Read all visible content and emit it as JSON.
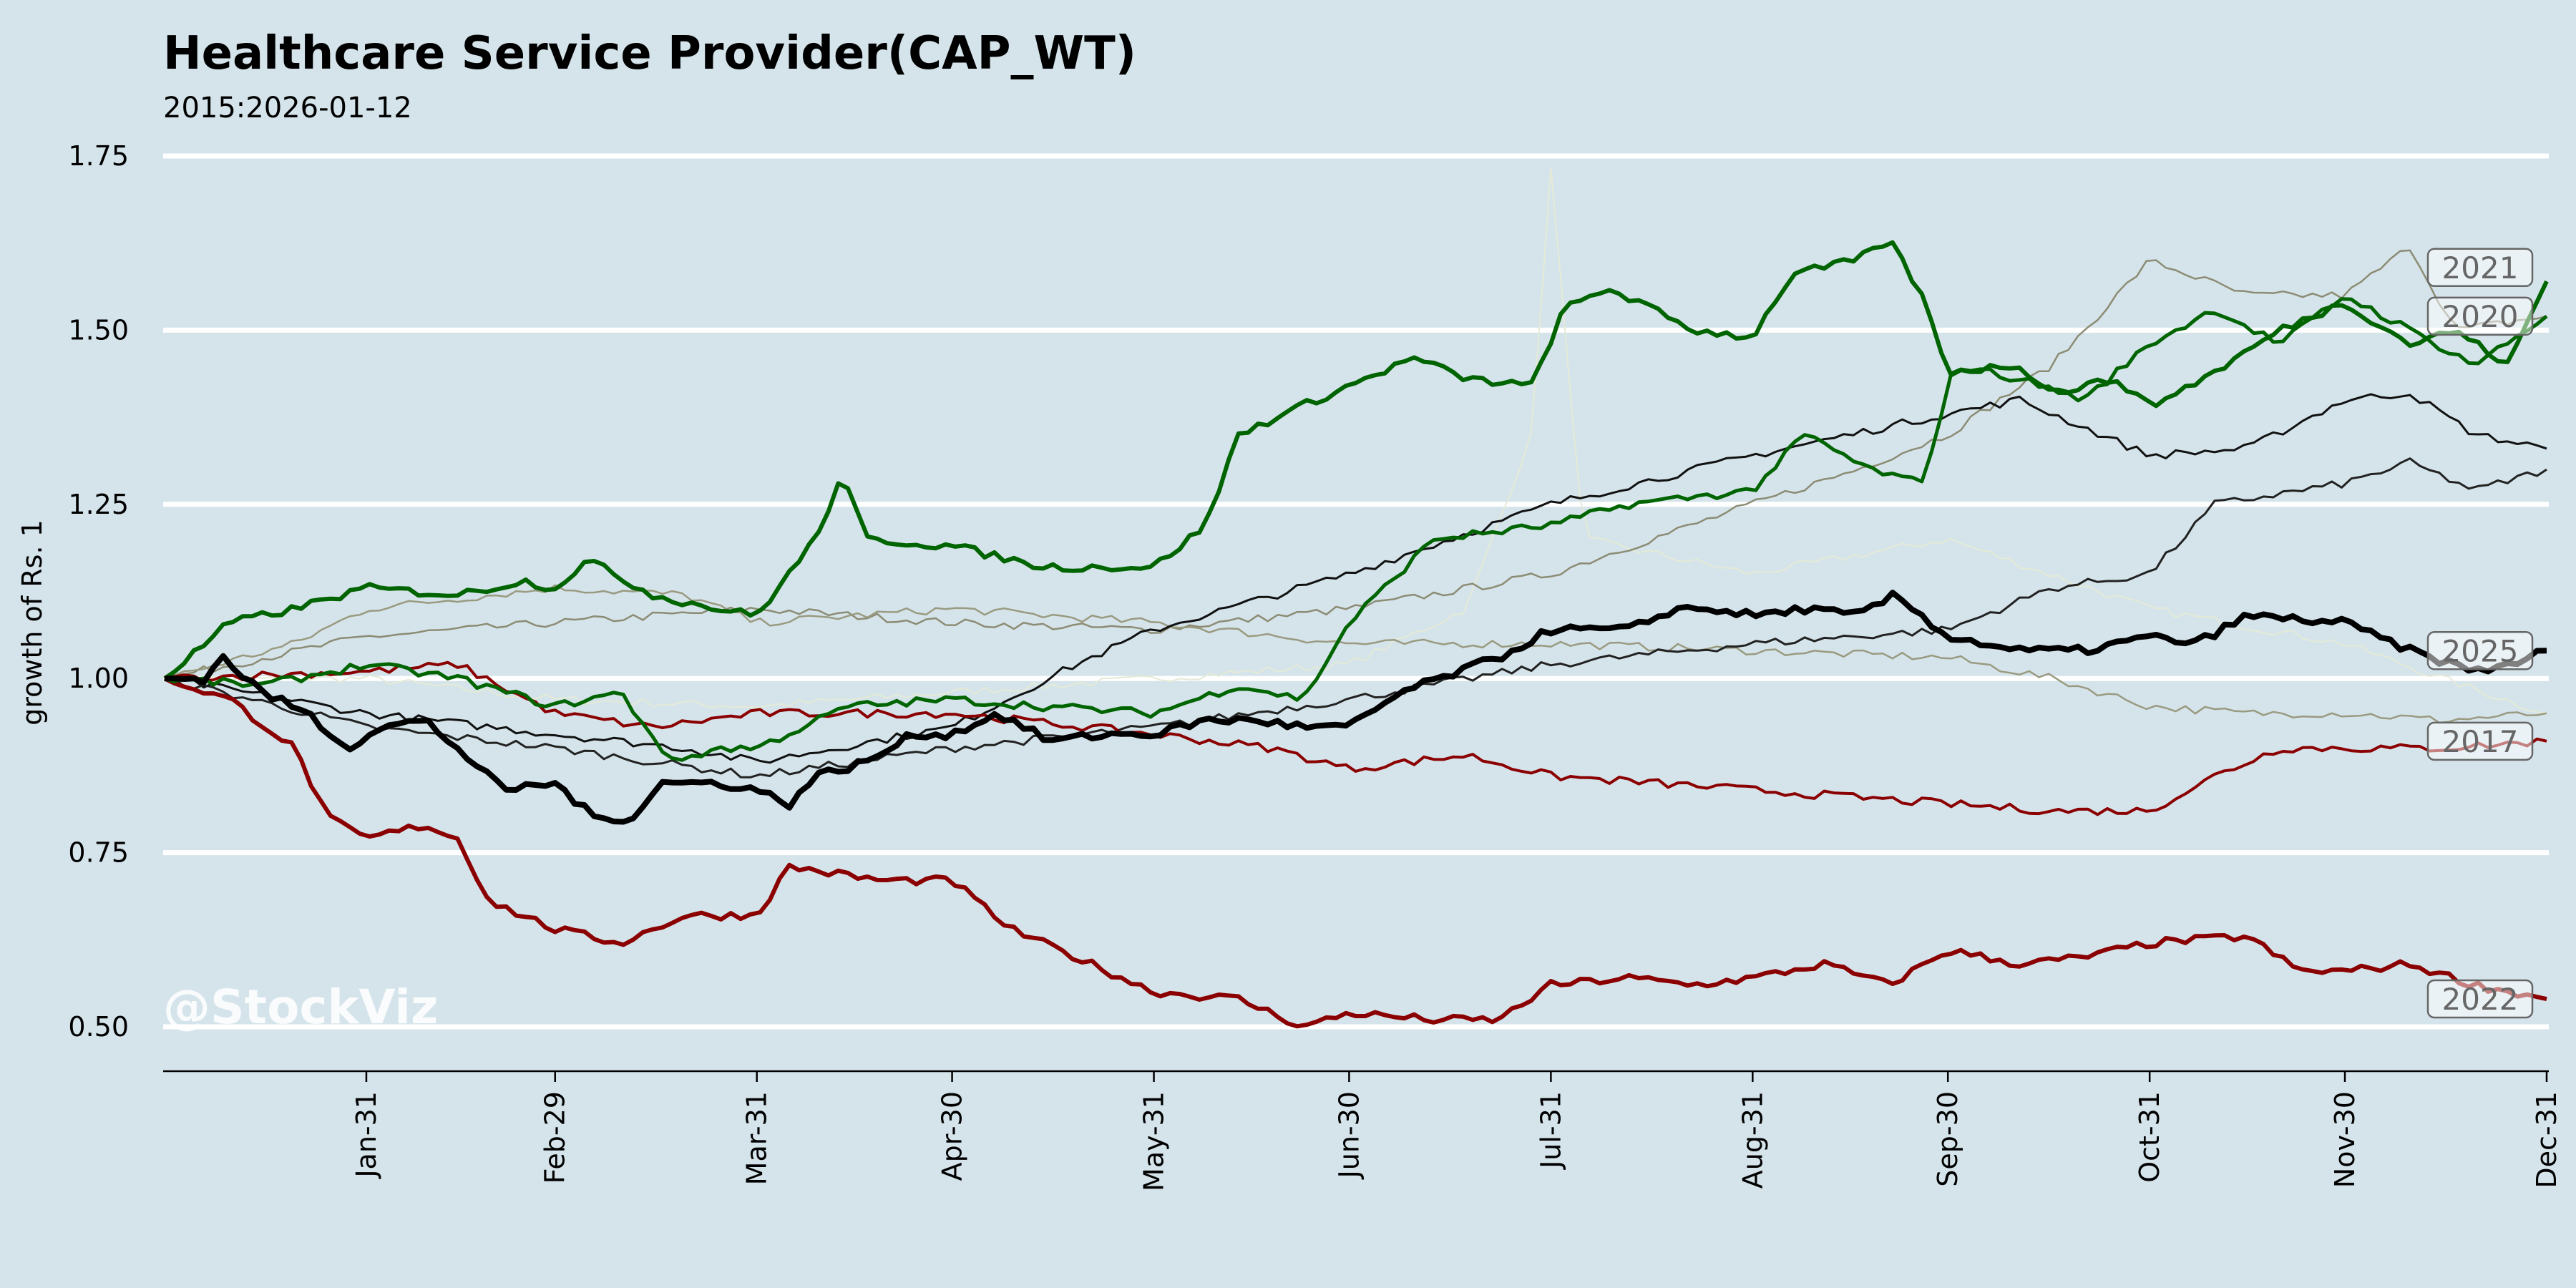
{
  "chart_data": {
    "type": "line",
    "title": "Healthcare Service Provider(CAP_WT)",
    "subtitle": "2015:2026-01-12",
    "xlabel": "",
    "ylabel": "growth of Rs. 1",
    "ylim": [
      0.45,
      1.78
    ],
    "yticks": [
      0.5,
      0.75,
      1.0,
      1.25,
      1.5,
      1.75
    ],
    "ytick_labels": [
      "0.50",
      "0.75",
      "1.00",
      "1.25",
      "1.50",
      "1.75"
    ],
    "xticks_day": [
      31,
      60,
      91,
      121,
      152,
      182,
      213,
      244,
      274,
      305,
      335,
      366
    ],
    "xtick_labels": [
      "Jan-31",
      "Feb-29",
      "Mar-31",
      "Apr-30",
      "May-31",
      "Jun-30",
      "Jul-31",
      "Aug-31",
      "Sep-30",
      "Oct-31",
      "Nov-30",
      "Dec-31"
    ],
    "grid": "horizontal",
    "watermark": "@StockViz",
    "colors": {
      "background": "#d5e4eb",
      "green": "#006400",
      "red": "#8b0000",
      "black": "#000000",
      "gray": "#8a8a72",
      "faint": "#e6ecd8"
    },
    "series": [
      {
        "name": "faint",
        "label": "",
        "color": "#e4ead6",
        "width": 2,
        "points": [
          [
            0,
            1.0
          ],
          [
            31,
            1.0
          ],
          [
            60,
            0.97
          ],
          [
            91,
            0.96
          ],
          [
            121,
            0.98
          ],
          [
            152,
            1.0
          ],
          [
            182,
            1.02
          ],
          [
            200,
            1.1
          ],
          [
            210,
            1.35
          ],
          [
            213,
            1.73
          ],
          [
            218,
            1.2
          ],
          [
            244,
            1.15
          ],
          [
            274,
            1.2
          ],
          [
            305,
            1.1
          ],
          [
            335,
            1.05
          ],
          [
            350,
            1.0
          ],
          [
            366,
            0.95
          ]
        ]
      },
      {
        "name": "gray-a",
        "label": "",
        "color": "#8c8c74",
        "width": 2.5,
        "points": [
          [
            0,
            1.0
          ],
          [
            31,
            1.06
          ],
          [
            60,
            1.08
          ],
          [
            91,
            1.1
          ],
          [
            121,
            1.08
          ],
          [
            152,
            1.07
          ],
          [
            182,
            1.1
          ],
          [
            213,
            1.15
          ],
          [
            244,
            1.25
          ],
          [
            260,
            1.3
          ],
          [
            274,
            1.35
          ],
          [
            290,
            1.45
          ],
          [
            305,
            1.6
          ],
          [
            320,
            1.55
          ],
          [
            335,
            1.55
          ],
          [
            345,
            1.62
          ],
          [
            352,
            1.5
          ],
          [
            366,
            1.52
          ]
        ]
      },
      {
        "name": "gray-b",
        "label": "",
        "color": "#9a9a80",
        "width": 2.5,
        "points": [
          [
            0,
            1.0
          ],
          [
            20,
            1.05
          ],
          [
            31,
            1.1
          ],
          [
            60,
            1.13
          ],
          [
            80,
            1.12
          ],
          [
            91,
            1.08
          ],
          [
            121,
            1.1
          ],
          [
            152,
            1.08
          ],
          [
            182,
            1.05
          ],
          [
            213,
            1.05
          ],
          [
            244,
            1.04
          ],
          [
            274,
            1.03
          ],
          [
            290,
            1.0
          ],
          [
            305,
            0.96
          ],
          [
            320,
            0.95
          ],
          [
            335,
            0.95
          ],
          [
            350,
            0.94
          ],
          [
            366,
            0.95
          ]
        ]
      },
      {
        "name": "black-a",
        "label": "",
        "color": "#111111",
        "width": 3,
        "points": [
          [
            0,
            1.0
          ],
          [
            31,
            0.95
          ],
          [
            60,
            0.92
          ],
          [
            80,
            0.9
          ],
          [
            91,
            0.88
          ],
          [
            121,
            0.93
          ],
          [
            140,
            1.02
          ],
          [
            152,
            1.07
          ],
          [
            182,
            1.15
          ],
          [
            213,
            1.25
          ],
          [
            244,
            1.32
          ],
          [
            274,
            1.38
          ],
          [
            285,
            1.4
          ],
          [
            305,
            1.32
          ],
          [
            320,
            1.33
          ],
          [
            335,
            1.4
          ],
          [
            345,
            1.41
          ],
          [
            355,
            1.35
          ],
          [
            366,
            1.33
          ]
        ]
      },
      {
        "name": "black-b",
        "label": "",
        "color": "#222222",
        "width": 3,
        "points": [
          [
            0,
            1.0
          ],
          [
            31,
            0.93
          ],
          [
            60,
            0.9
          ],
          [
            91,
            0.86
          ],
          [
            121,
            0.9
          ],
          [
            152,
            0.93
          ],
          [
            182,
            0.97
          ],
          [
            213,
            1.02
          ],
          [
            244,
            1.05
          ],
          [
            274,
            1.07
          ],
          [
            290,
            1.13
          ],
          [
            305,
            1.15
          ],
          [
            315,
            1.25
          ],
          [
            335,
            1.28
          ],
          [
            345,
            1.31
          ],
          [
            355,
            1.27
          ],
          [
            366,
            1.3
          ]
        ]
      },
      {
        "name": "2017",
        "label": "2017",
        "color": "#8b0000",
        "width": 4,
        "points": [
          [
            0,
            1.0
          ],
          [
            31,
            1.01
          ],
          [
            45,
            1.02
          ],
          [
            60,
            0.95
          ],
          [
            75,
            0.93
          ],
          [
            91,
            0.95
          ],
          [
            121,
            0.95
          ],
          [
            152,
            0.92
          ],
          [
            170,
            0.9
          ],
          [
            182,
            0.87
          ],
          [
            200,
            0.89
          ],
          [
            213,
            0.86
          ],
          [
            244,
            0.84
          ],
          [
            274,
            0.82
          ],
          [
            290,
            0.81
          ],
          [
            305,
            0.81
          ],
          [
            315,
            0.86
          ],
          [
            325,
            0.9
          ],
          [
            335,
            0.9
          ],
          [
            350,
            0.9
          ],
          [
            366,
            0.91
          ]
        ]
      },
      {
        "name": "2022",
        "label": "2022",
        "color": "#8b0000",
        "width": 6,
        "points": [
          [
            0,
            1.0
          ],
          [
            10,
            0.97
          ],
          [
            20,
            0.9
          ],
          [
            25,
            0.8
          ],
          [
            31,
            0.77
          ],
          [
            40,
            0.79
          ],
          [
            45,
            0.77
          ],
          [
            50,
            0.68
          ],
          [
            60,
            0.64
          ],
          [
            70,
            0.62
          ],
          [
            80,
            0.66
          ],
          [
            91,
            0.66
          ],
          [
            96,
            0.73
          ],
          [
            110,
            0.71
          ],
          [
            121,
            0.71
          ],
          [
            130,
            0.64
          ],
          [
            140,
            0.6
          ],
          [
            152,
            0.55
          ],
          [
            165,
            0.54
          ],
          [
            175,
            0.5
          ],
          [
            182,
            0.52
          ],
          [
            195,
            0.51
          ],
          [
            205,
            0.51
          ],
          [
            213,
            0.56
          ],
          [
            225,
            0.57
          ],
          [
            235,
            0.56
          ],
          [
            244,
            0.57
          ],
          [
            255,
            0.59
          ],
          [
            265,
            0.56
          ],
          [
            274,
            0.61
          ],
          [
            285,
            0.59
          ],
          [
            295,
            0.6
          ],
          [
            305,
            0.62
          ],
          [
            320,
            0.63
          ],
          [
            328,
            0.58
          ],
          [
            335,
            0.58
          ],
          [
            345,
            0.59
          ],
          [
            355,
            0.56
          ],
          [
            366,
            0.54
          ]
        ]
      },
      {
        "name": "2020",
        "label": "2020",
        "color": "#006400",
        "width": 5,
        "points": [
          [
            0,
            1.0
          ],
          [
            15,
            0.99
          ],
          [
            31,
            1.02
          ],
          [
            45,
            1.0
          ],
          [
            60,
            0.96
          ],
          [
            70,
            0.98
          ],
          [
            78,
            0.88
          ],
          [
            85,
            0.9
          ],
          [
            91,
            0.9
          ],
          [
            105,
            0.96
          ],
          [
            121,
            0.97
          ],
          [
            135,
            0.96
          ],
          [
            152,
            0.95
          ],
          [
            165,
            0.99
          ],
          [
            175,
            0.97
          ],
          [
            182,
            1.08
          ],
          [
            195,
            1.2
          ],
          [
            213,
            1.22
          ],
          [
            225,
            1.25
          ],
          [
            244,
            1.27
          ],
          [
            252,
            1.35
          ],
          [
            262,
            1.3
          ],
          [
            270,
            1.28
          ],
          [
            275,
            1.45
          ],
          [
            285,
            1.43
          ],
          [
            295,
            1.4
          ],
          [
            305,
            1.48
          ],
          [
            315,
            1.53
          ],
          [
            325,
            1.48
          ],
          [
            335,
            1.55
          ],
          [
            345,
            1.5
          ],
          [
            355,
            1.45
          ],
          [
            366,
            1.52
          ]
        ]
      },
      {
        "name": "2021",
        "label": "2021",
        "color": "#006400",
        "width": 6,
        "points": [
          [
            0,
            1.0
          ],
          [
            10,
            1.08
          ],
          [
            20,
            1.1
          ],
          [
            31,
            1.13
          ],
          [
            45,
            1.12
          ],
          [
            55,
            1.14
          ],
          [
            60,
            1.13
          ],
          [
            65,
            1.17
          ],
          [
            75,
            1.12
          ],
          [
            85,
            1.1
          ],
          [
            91,
            1.09
          ],
          [
            100,
            1.2
          ],
          [
            104,
            1.29
          ],
          [
            108,
            1.2
          ],
          [
            121,
            1.19
          ],
          [
            135,
            1.16
          ],
          [
            152,
            1.16
          ],
          [
            160,
            1.22
          ],
          [
            165,
            1.35
          ],
          [
            172,
            1.38
          ],
          [
            182,
            1.42
          ],
          [
            192,
            1.46
          ],
          [
            200,
            1.43
          ],
          [
            210,
            1.42
          ],
          [
            215,
            1.53
          ],
          [
            222,
            1.56
          ],
          [
            235,
            1.5
          ],
          [
            244,
            1.49
          ],
          [
            250,
            1.58
          ],
          [
            260,
            1.6
          ],
          [
            265,
            1.63
          ],
          [
            270,
            1.55
          ],
          [
            274,
            1.44
          ],
          [
            285,
            1.45
          ],
          [
            290,
            1.41
          ],
          [
            300,
            1.43
          ],
          [
            305,
            1.39
          ],
          [
            315,
            1.44
          ],
          [
            325,
            1.5
          ],
          [
            335,
            1.54
          ],
          [
            345,
            1.48
          ],
          [
            352,
            1.5
          ],
          [
            360,
            1.45
          ],
          [
            366,
            1.57
          ]
        ]
      },
      {
        "name": "2025",
        "label": "2025",
        "color": "#000000",
        "width": 8,
        "points": [
          [
            0,
            1.0
          ],
          [
            6,
            1.0
          ],
          [
            9,
            1.03
          ],
          [
            15,
            0.98
          ],
          [
            22,
            0.95
          ],
          [
            28,
            0.9
          ],
          [
            33,
            0.93
          ],
          [
            40,
            0.94
          ],
          [
            45,
            0.9
          ],
          [
            52,
            0.84
          ],
          [
            60,
            0.85
          ],
          [
            66,
            0.8
          ],
          [
            72,
            0.8
          ],
          [
            76,
            0.85
          ],
          [
            85,
            0.85
          ],
          [
            91,
            0.84
          ],
          [
            96,
            0.82
          ],
          [
            100,
            0.86
          ],
          [
            108,
            0.88
          ],
          [
            115,
            0.92
          ],
          [
            121,
            0.92
          ],
          [
            128,
            0.95
          ],
          [
            136,
            0.91
          ],
          [
            145,
            0.92
          ],
          [
            152,
            0.92
          ],
          [
            160,
            0.94
          ],
          [
            168,
            0.94
          ],
          [
            175,
            0.93
          ],
          [
            182,
            0.93
          ],
          [
            190,
            0.98
          ],
          [
            196,
            1.0
          ],
          [
            205,
            1.03
          ],
          [
            213,
            1.07
          ],
          [
            225,
            1.07
          ],
          [
            232,
            1.1
          ],
          [
            238,
            1.1
          ],
          [
            244,
            1.09
          ],
          [
            252,
            1.1
          ],
          [
            260,
            1.09
          ],
          [
            266,
            1.12
          ],
          [
            274,
            1.06
          ],
          [
            285,
            1.04
          ],
          [
            295,
            1.04
          ],
          [
            305,
            1.06
          ],
          [
            312,
            1.05
          ],
          [
            320,
            1.09
          ],
          [
            335,
            1.08
          ],
          [
            345,
            1.04
          ],
          [
            355,
            1.01
          ],
          [
            360,
            1.02
          ],
          [
            366,
            1.04
          ]
        ]
      }
    ]
  }
}
